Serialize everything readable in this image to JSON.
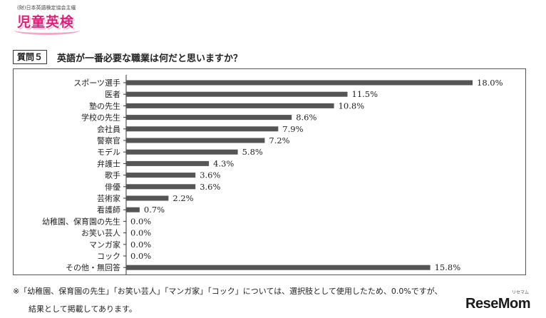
{
  "logo": {
    "org": "(財)日本英語検定協会主催",
    "name": "児童英検"
  },
  "question": {
    "label": "質問５",
    "text": "英語が一番必要な職業は何だと思いますか？"
  },
  "chart_data": {
    "type": "bar",
    "orientation": "horizontal",
    "categories": [
      "スポーツ選手",
      "医者",
      "塾の先生",
      "学校の先生",
      "会社員",
      "警察官",
      "モデル",
      "弁護士",
      "歌手",
      "俳優",
      "芸術家",
      "看護師",
      "幼稚園、保育園の先生",
      "お笑い芸人",
      "マンガ家",
      "コック",
      "その他・無回答"
    ],
    "values": [
      18.0,
      11.5,
      10.8,
      8.6,
      7.9,
      7.2,
      5.8,
      4.3,
      3.6,
      3.6,
      2.2,
      0.7,
      0.0,
      0.0,
      0.0,
      0.0,
      15.8
    ],
    "value_labels": [
      "18.0%",
      "11.5%",
      "10.8%",
      "8.6%",
      "7.9%",
      "7.2%",
      "5.8%",
      "4.3%",
      "3.6%",
      "3.6%",
      "2.2%",
      "0.7%",
      "0.0%",
      "0.0%",
      "0.0%",
      "0.0%",
      "15.8%"
    ],
    "xlim": [
      0,
      18.0
    ],
    "bar_color": "#555555",
    "grid": false
  },
  "note": {
    "line1": "※「幼稚園、保育園の先生」「お笑い芸人」「マンガ家」「コック」については、選択肢として使用したため、0.0%ですが、",
    "line2": "結果として掲載してあります。"
  },
  "watermark": {
    "text": "ReseMom",
    "sub": "リセマム"
  }
}
